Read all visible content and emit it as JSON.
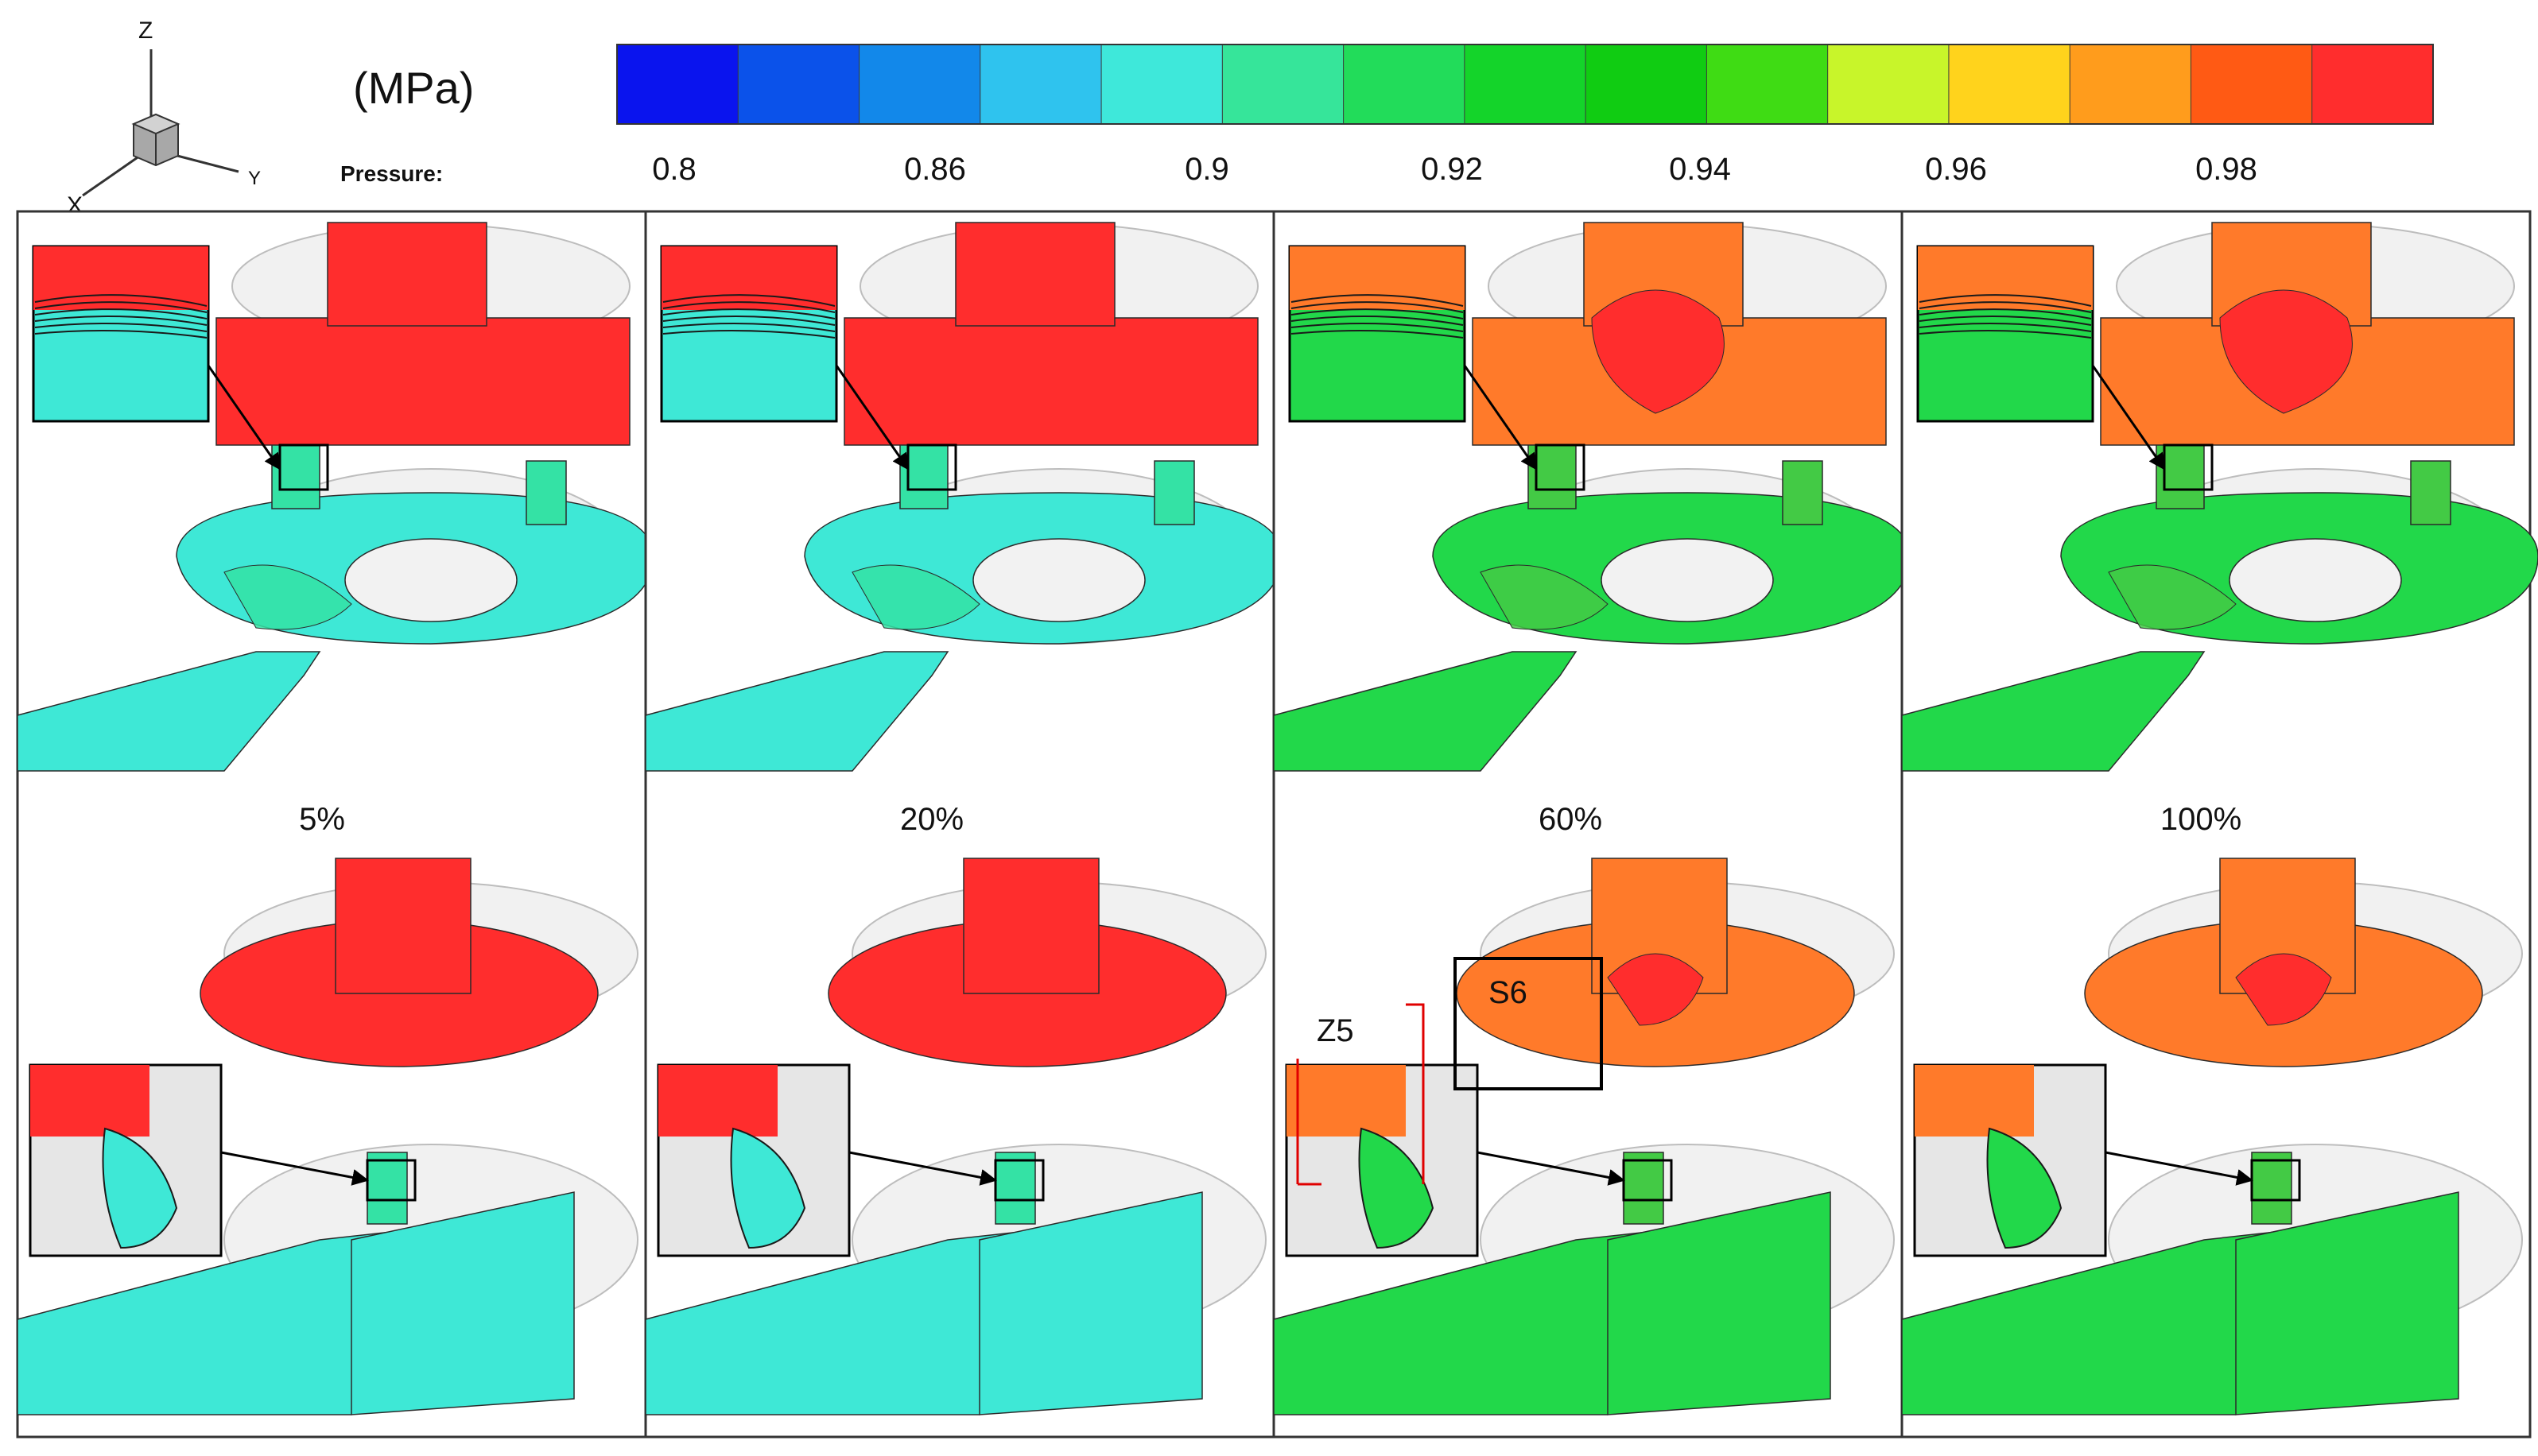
{
  "axes_triad": {
    "z": "Z",
    "y": "Y",
    "x": "X"
  },
  "legend": {
    "unit": "(MPa)",
    "variable": "Pressure:",
    "ticks": [
      "0.8",
      "0.86",
      "0.9",
      "0.92",
      "0.94",
      "0.96",
      "0.98"
    ],
    "colors": [
      "#0a14ee",
      "#0b52ea",
      "#1288ea",
      "#2fc3ee",
      "#3ee8da",
      "#36e59a",
      "#22dc5a",
      "#14d42a",
      "#10cc12",
      "#3fdc14",
      "#c8f52a",
      "#ffd31c",
      "#ff9c1c",
      "#ff5a14",
      "#ff2d2d"
    ]
  },
  "panels": [
    {
      "label": "5%",
      "pressure_level": 0.05
    },
    {
      "label": "20%",
      "pressure_level": 0.2
    },
    {
      "label": "60%",
      "pressure_level": 0.6
    },
    {
      "label": "100%",
      "pressure_level": 1.0
    }
  ],
  "annotations": {
    "z_region": "Z5",
    "s_region": "S6"
  },
  "field_colors": {
    "high": "#ff2d2d",
    "high_orange": "#ff7a2a",
    "mid_green": "#22d84a",
    "low_cyan": "#3ee8d6",
    "ghost": "#d6d6d6"
  }
}
